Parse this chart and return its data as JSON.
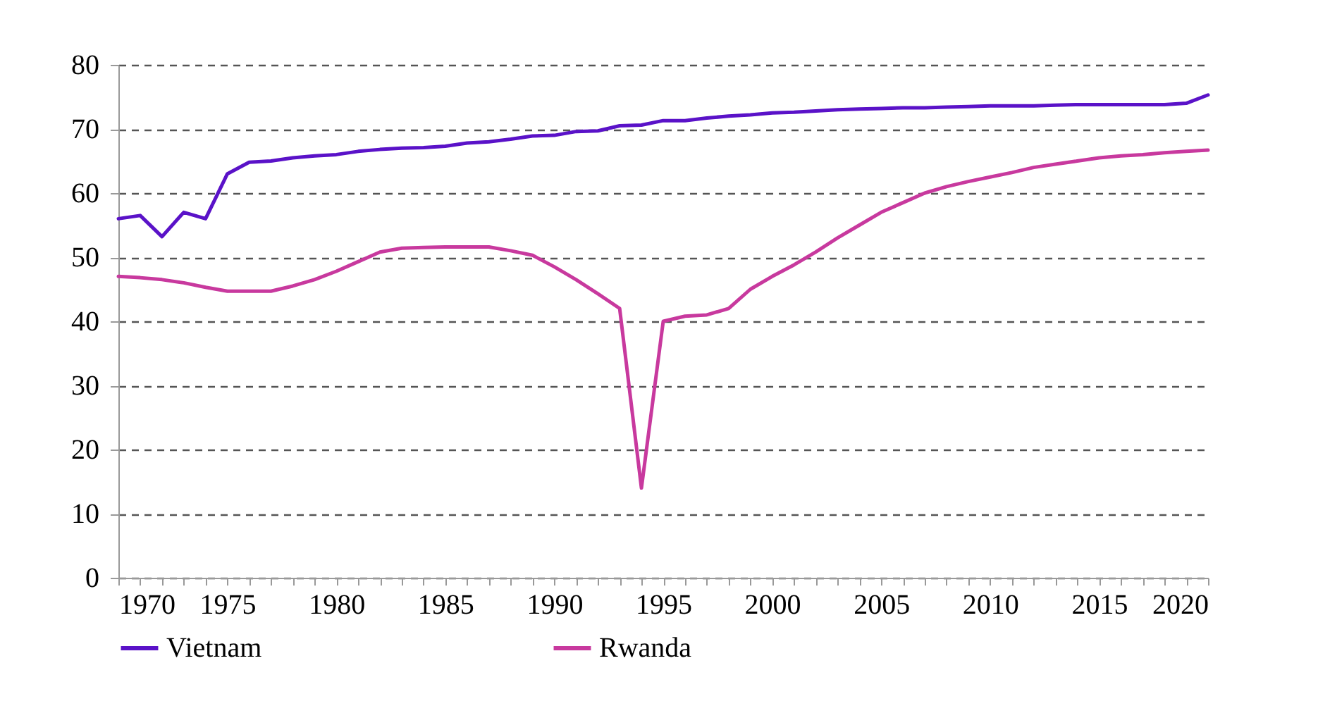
{
  "chart_data": {
    "type": "line",
    "x": [
      1970,
      1971,
      1972,
      1973,
      1974,
      1975,
      1976,
      1977,
      1978,
      1979,
      1980,
      1981,
      1982,
      1983,
      1984,
      1985,
      1986,
      1987,
      1988,
      1989,
      1990,
      1991,
      1992,
      1993,
      1994,
      1995,
      1996,
      1997,
      1998,
      1999,
      2000,
      2001,
      2002,
      2003,
      2004,
      2005,
      2006,
      2007,
      2008,
      2009,
      2010,
      2011,
      2012,
      2013,
      2014,
      2015,
      2016,
      2017,
      2018,
      2019,
      2020
    ],
    "series": [
      {
        "name": "Vietnam",
        "color": "#5a12c8",
        "values": [
          56,
          56.5,
          53.2,
          57,
          56,
          63,
          64.8,
          65,
          65.5,
          65.8,
          66,
          66.5,
          66.8,
          67,
          67.1,
          67.3,
          67.8,
          68,
          68.4,
          68.9,
          69,
          69.6,
          69.7,
          70.5,
          70.6,
          71.3,
          71.3,
          71.7,
          72,
          72.2,
          72.5,
          72.6,
          72.8,
          73,
          73.1,
          73.2,
          73.3,
          73.3,
          73.4,
          73.5,
          73.6,
          73.6,
          73.6,
          73.7,
          73.8,
          73.8,
          73.8,
          73.8,
          73.8,
          74,
          75.3
        ]
      },
      {
        "name": "Rwanda",
        "color": "#c8399e",
        "values": [
          47,
          46.8,
          46.5,
          46,
          45.3,
          44.7,
          44.7,
          44.7,
          45.5,
          46.5,
          47.8,
          49.3,
          50.8,
          51.4,
          51.5,
          51.6,
          51.6,
          51.6,
          51,
          50.3,
          48.5,
          46.5,
          44.3,
          42,
          14,
          40,
          40.8,
          41,
          42,
          45,
          47,
          48.8,
          50.8,
          53,
          55,
          57,
          58.5,
          60,
          61,
          61.8,
          62.5,
          63.2,
          64,
          64.5,
          65,
          65.5,
          65.8,
          66,
          66.3,
          66.5,
          66.7
        ]
      }
    ],
    "xlim": [
      1970,
      2020
    ],
    "xticks": [
      1970,
      {
        "value": 1971,
        "label": null
      },
      {
        "value": 1972,
        "label": null
      },
      {
        "value": 1973,
        "label": null
      },
      {
        "value": 1974,
        "label": null
      },
      1975,
      {
        "value": 1976,
        "label": null
      },
      {
        "value": 1977,
        "label": null
      },
      {
        "value": 1978,
        "label": null
      },
      {
        "value": 1979,
        "label": null
      },
      1980,
      {
        "value": 1981,
        "label": null
      },
      {
        "value": 1982,
        "label": null
      },
      {
        "value": 1983,
        "label": null
      },
      {
        "value": 1984,
        "label": null
      },
      1985,
      {
        "value": 1986,
        "label": null
      },
      {
        "value": 1987,
        "label": null
      },
      {
        "value": 1988,
        "label": null
      },
      {
        "value": 1989,
        "label": null
      },
      1990,
      {
        "value": 1991,
        "label": null
      },
      {
        "value": 1992,
        "label": null
      },
      {
        "value": 1993,
        "label": null
      },
      {
        "value": 1994,
        "label": null
      },
      1995,
      {
        "value": 1996,
        "label": null
      },
      {
        "value": 1997,
        "label": null
      },
      {
        "value": 1998,
        "label": null
      },
      {
        "value": 1999,
        "label": null
      },
      2000,
      {
        "value": 2001,
        "label": null
      },
      {
        "value": 2002,
        "label": null
      },
      {
        "value": 2003,
        "label": null
      },
      {
        "value": 2004,
        "label": null
      },
      2005,
      {
        "value": 2006,
        "label": null
      },
      {
        "value": 2007,
        "label": null
      },
      {
        "value": 2008,
        "label": null
      },
      {
        "value": 2009,
        "label": null
      },
      2010,
      {
        "value": 2011,
        "label": null
      },
      {
        "value": 2012,
        "label": null
      },
      {
        "value": 2013,
        "label": null
      },
      {
        "value": 2014,
        "label": null
      },
      2015,
      {
        "value": 2016,
        "label": null
      },
      {
        "value": 2017,
        "label": null
      },
      {
        "value": 2018,
        "label": null
      },
      {
        "value": 2019,
        "label": null
      },
      2020
    ],
    "ylim": [
      0,
      80
    ],
    "yticks": [
      0,
      10,
      20,
      30,
      40,
      50,
      60,
      70,
      80
    ],
    "grid": "y",
    "legend": "bottom",
    "line_style": "solid"
  }
}
